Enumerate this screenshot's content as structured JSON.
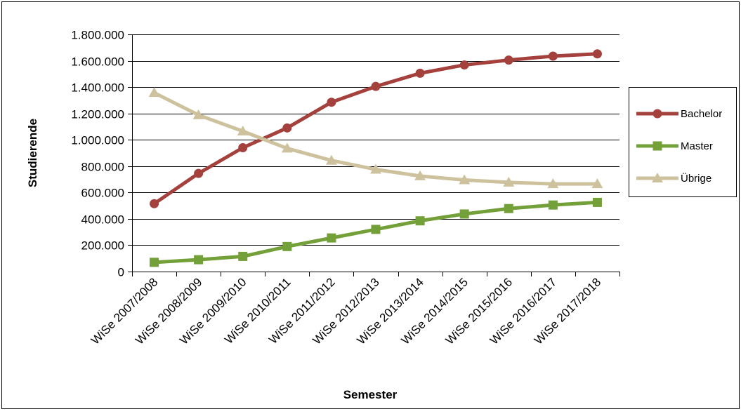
{
  "chart_data": {
    "type": "line",
    "title": "",
    "xlabel": "Semester",
    "ylabel": "Studierende",
    "ylim": [
      0,
      1800000
    ],
    "ytick_step": 200000,
    "yticks": [
      "0",
      "200.000",
      "400.000",
      "600.000",
      "800.000",
      "1.000.000",
      "1.200.000",
      "1.400.000",
      "1.600.000",
      "1.800.000"
    ],
    "grid": true,
    "legend_position": "right",
    "categories": [
      "WiSe 2007/2008",
      "WiSe 2008/2009",
      "WiSe 2009/2010",
      "WiSe 2010/2011",
      "WiSe 2011/2012",
      "WiSe 2012/2013",
      "WiSe 2013/2014",
      "WiSe 2014/2015",
      "WiSe 2015/2016",
      "WiSe 2016/2017",
      "WiSe 2017/2018"
    ],
    "series": [
      {
        "name": "Bachelor",
        "color": "#a4413c",
        "marker": "circle",
        "values": [
          515000,
          745000,
          940000,
          1090000,
          1285000,
          1405000,
          1505000,
          1568000,
          1605000,
          1635000,
          1652000
        ]
      },
      {
        "name": "Master",
        "color": "#74a03a",
        "marker": "square",
        "values": [
          70000,
          90000,
          115000,
          190000,
          255000,
          320000,
          385000,
          437000,
          478000,
          505000,
          525000
        ]
      },
      {
        "name": "Übrige",
        "color": "#cdc29d",
        "marker": "triangle",
        "values": [
          1357000,
          1188000,
          1065000,
          935000,
          843000,
          775000,
          725000,
          695000,
          677000,
          665000,
          665000
        ]
      }
    ]
  }
}
